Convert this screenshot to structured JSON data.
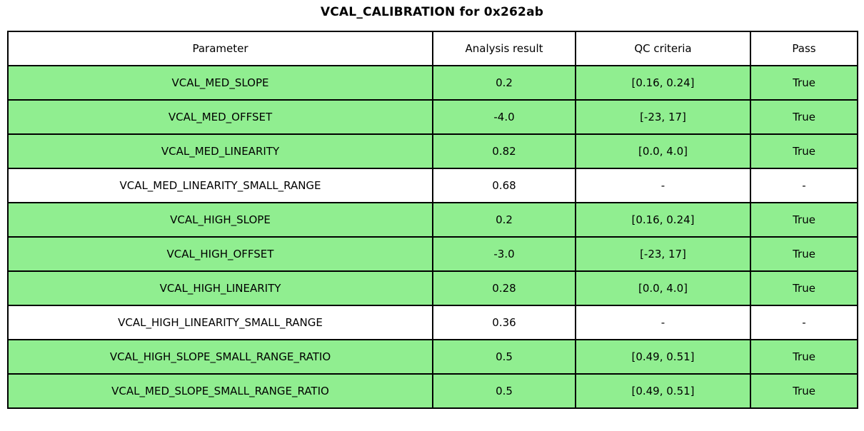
{
  "title": "VCAL_CALIBRATION for 0x262ab",
  "colors": {
    "pass_row_bg": "#90EE90",
    "neutral_row_bg": "#FFFFFF",
    "border": "#000000",
    "text": "#000000"
  },
  "chart_data": {
    "type": "table",
    "title": "VCAL_CALIBRATION for 0x262ab",
    "columns": [
      "Parameter",
      "Analysis result",
      "QC criteria",
      "Pass"
    ],
    "rows": [
      {
        "parameter": "VCAL_MED_SLOPE",
        "analysis_result": "0.2",
        "qc_criteria": "[0.16, 0.24]",
        "pass": "True",
        "highlighted": true
      },
      {
        "parameter": "VCAL_MED_OFFSET",
        "analysis_result": "-4.0",
        "qc_criteria": "[-23, 17]",
        "pass": "True",
        "highlighted": true
      },
      {
        "parameter": "VCAL_MED_LINEARITY",
        "analysis_result": "0.82",
        "qc_criteria": "[0.0, 4.0]",
        "pass": "True",
        "highlighted": true
      },
      {
        "parameter": "VCAL_MED_LINEARITY_SMALL_RANGE",
        "analysis_result": "0.68",
        "qc_criteria": "-",
        "pass": "-",
        "highlighted": false
      },
      {
        "parameter": "VCAL_HIGH_SLOPE",
        "analysis_result": "0.2",
        "qc_criteria": "[0.16, 0.24]",
        "pass": "True",
        "highlighted": true
      },
      {
        "parameter": "VCAL_HIGH_OFFSET",
        "analysis_result": "-3.0",
        "qc_criteria": "[-23, 17]",
        "pass": "True",
        "highlighted": true
      },
      {
        "parameter": "VCAL_HIGH_LINEARITY",
        "analysis_result": "0.28",
        "qc_criteria": "[0.0, 4.0]",
        "pass": "True",
        "highlighted": true
      },
      {
        "parameter": "VCAL_HIGH_LINEARITY_SMALL_RANGE",
        "analysis_result": "0.36",
        "qc_criteria": "-",
        "pass": "-",
        "highlighted": false
      },
      {
        "parameter": "VCAL_HIGH_SLOPE_SMALL_RANGE_RATIO",
        "analysis_result": "0.5",
        "qc_criteria": "[0.49, 0.51]",
        "pass": "True",
        "highlighted": true
      },
      {
        "parameter": "VCAL_MED_SLOPE_SMALL_RANGE_RATIO",
        "analysis_result": "0.5",
        "qc_criteria": "[0.49, 0.51]",
        "pass": "True",
        "highlighted": true
      }
    ]
  }
}
